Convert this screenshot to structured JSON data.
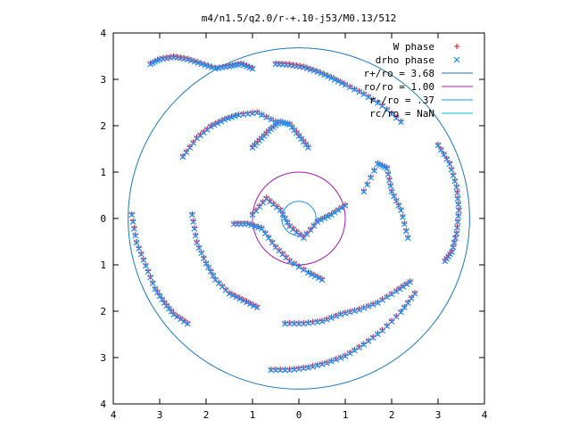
{
  "chart_data": {
    "type": "scatter",
    "title": "m4/n1.5/q2.0/r-+.10-j53/M0.13/512",
    "xlim": [
      -4,
      4
    ],
    "ylim": [
      -4,
      4
    ],
    "x_tick_labels": [
      "4",
      "3",
      "2",
      "1",
      "0",
      "1",
      "2",
      "3",
      "4"
    ],
    "y_tick_labels": [
      "4",
      "3",
      "2",
      "1",
      "0",
      "1",
      "2",
      "3",
      "4"
    ],
    "grid": false,
    "legend_position": "top-right",
    "legend": [
      {
        "label": "W phase",
        "kind": "marker-plus",
        "color": "#ff0000"
      },
      {
        "label": "drho phase",
        "kind": "marker-x",
        "color": "#0080ff"
      },
      {
        "label": "r+/ro = 3.68",
        "kind": "line",
        "color": "#1f77b4"
      },
      {
        "label": "ro/ro = 1.00",
        "kind": "line",
        "color": "#a020a0"
      },
      {
        "label": "r-/ro = .37",
        "kind": "line",
        "color": "#1e90ff"
      },
      {
        "label": "rc/ro = NaN",
        "kind": "line",
        "color": "#00bcd4"
      }
    ],
    "circles": [
      {
        "name": "r+/ro",
        "radius": 3.68,
        "color": "#1f77b4"
      },
      {
        "name": "ro/ro",
        "radius": 1.0,
        "color": "#a020a0"
      },
      {
        "name": "r-/ro",
        "radius": 0.37,
        "color": "#1e90ff"
      }
    ],
    "series": [
      {
        "name": "W phase",
        "marker": "plus",
        "color": "#ff0000",
        "arms": [
          {
            "x": [
              -3.2,
              -3.0,
              -2.7,
              -2.4,
              -2.1,
              -1.8,
              -1.5,
              -1.25,
              -1.0
            ],
            "y": [
              3.35,
              3.45,
              3.5,
              3.45,
              3.35,
              3.25,
              3.3,
              3.35,
              3.25
            ]
          },
          {
            "x": [
              -0.5,
              -0.2,
              0.1,
              0.4,
              0.7,
              1.0,
              1.4,
              1.8,
              2.2
            ],
            "y": [
              3.35,
              3.33,
              3.28,
              3.18,
              3.05,
              2.9,
              2.7,
              2.45,
              2.1
            ]
          },
          {
            "x": [
              -2.5,
              -2.2,
              -1.9,
              -1.6,
              -1.3,
              -0.9,
              -0.5
            ],
            "y": [
              1.35,
              1.75,
              2.0,
              2.15,
              2.25,
              2.3,
              2.1
            ]
          },
          {
            "x": [
              -3.6,
              -3.5,
              -3.3,
              -3.1,
              -2.9,
              -2.7,
              -2.4
            ],
            "y": [
              0.1,
              -0.5,
              -1.0,
              -1.5,
              -1.8,
              -2.05,
              -2.25
            ]
          },
          {
            "x": [
              -2.3,
              -2.2,
              -2.0,
              -1.8,
              -1.5,
              -1.2,
              -0.9
            ],
            "y": [
              0.1,
              -0.5,
              -0.95,
              -1.3,
              -1.6,
              -1.75,
              -1.9
            ]
          },
          {
            "x": [
              -0.6,
              -0.2,
              0.2,
              0.6,
              1.0,
              1.4,
              1.8,
              2.2,
              2.5
            ],
            "y": [
              -3.25,
              -3.25,
              -3.2,
              -3.1,
              -2.95,
              -2.7,
              -2.4,
              -2.0,
              -1.6
            ]
          },
          {
            "x": [
              -0.3,
              0.1,
              0.5,
              0.9,
              1.3,
              1.7,
              2.1,
              2.4
            ],
            "y": [
              -2.25,
              -2.25,
              -2.2,
              -2.05,
              -1.95,
              -1.8,
              -1.55,
              -1.35
            ]
          },
          {
            "x": [
              3.0,
              3.25,
              3.4,
              3.45,
              3.4,
              3.3,
              3.15
            ],
            "y": [
              1.6,
              1.2,
              0.7,
              0.2,
              -0.3,
              -0.7,
              -0.9
            ]
          },
          {
            "x": [
              1.4,
              1.7,
              1.9,
              2.0,
              2.2,
              2.35
            ],
            "y": [
              0.6,
              1.2,
              1.1,
              0.6,
              0.2,
              -0.4
            ]
          },
          {
            "x": [
              -1.0,
              -0.7,
              -0.4,
              -0.2,
              0.1,
              0.4,
              0.7,
              1.0
            ],
            "y": [
              0.1,
              0.45,
              0.2,
              -0.15,
              -0.4,
              -0.05,
              0.1,
              0.3
            ]
          },
          {
            "x": [
              -1.4,
              -1.1,
              -0.8,
              -0.5,
              -0.2,
              0.2,
              0.5
            ],
            "y": [
              -0.1,
              -0.1,
              -0.2,
              -0.6,
              -0.9,
              -1.15,
              -1.3
            ]
          },
          {
            "x": [
              -1.0,
              -0.8,
              -0.6,
              -0.4,
              -0.2,
              0.0,
              0.2
            ],
            "y": [
              1.55,
              1.75,
              1.95,
              2.1,
              2.05,
              1.8,
              1.55
            ]
          }
        ]
      },
      {
        "name": "drho phase",
        "marker": "x",
        "color": "#1e90ff",
        "arms": [
          {
            "x": [
              -3.2,
              -3.0,
              -2.7,
              -2.4,
              -2.1,
              -1.8,
              -1.5,
              -1.25,
              -1.0
            ],
            "y": [
              3.33,
              3.43,
              3.48,
              3.43,
              3.33,
              3.23,
              3.28,
              3.33,
              3.23
            ]
          },
          {
            "x": [
              -0.5,
              -0.2,
              0.1,
              0.4,
              0.7,
              1.0,
              1.4,
              1.8,
              2.2
            ],
            "y": [
              3.33,
              3.31,
              3.26,
              3.16,
              3.03,
              2.88,
              2.68,
              2.43,
              2.08
            ]
          },
          {
            "x": [
              -2.5,
              -2.2,
              -1.9,
              -1.6,
              -1.3,
              -0.9,
              -0.5
            ],
            "y": [
              1.33,
              1.73,
              1.98,
              2.13,
              2.23,
              2.28,
              2.08
            ]
          },
          {
            "x": [
              -3.6,
              -3.5,
              -3.3,
              -3.1,
              -2.9,
              -2.7,
              -2.4
            ],
            "y": [
              0.08,
              -0.52,
              -1.02,
              -1.52,
              -1.82,
              -2.07,
              -2.27
            ]
          },
          {
            "x": [
              -2.3,
              -2.2,
              -2.0,
              -1.8,
              -1.5,
              -1.2,
              -0.9
            ],
            "y": [
              0.08,
              -0.52,
              -0.97,
              -1.32,
              -1.62,
              -1.77,
              -1.92
            ]
          },
          {
            "x": [
              -0.6,
              -0.2,
              0.2,
              0.6,
              1.0,
              1.4,
              1.8,
              2.2,
              2.5
            ],
            "y": [
              -3.27,
              -3.27,
              -3.22,
              -3.12,
              -2.97,
              -2.72,
              -2.42,
              -2.02,
              -1.62
            ]
          },
          {
            "x": [
              -0.3,
              0.1,
              0.5,
              0.9,
              1.3,
              1.7,
              2.1,
              2.4
            ],
            "y": [
              -2.27,
              -2.27,
              -2.22,
              -2.07,
              -1.97,
              -1.82,
              -1.57,
              -1.37
            ]
          },
          {
            "x": [
              3.0,
              3.25,
              3.4,
              3.45,
              3.4,
              3.3,
              3.15
            ],
            "y": [
              1.58,
              1.18,
              0.68,
              0.18,
              -0.32,
              -0.72,
              -0.92
            ]
          },
          {
            "x": [
              1.4,
              1.7,
              1.9,
              2.0,
              2.2,
              2.35
            ],
            "y": [
              0.58,
              1.18,
              1.08,
              0.58,
              0.18,
              -0.42
            ]
          },
          {
            "x": [
              -1.0,
              -0.7,
              -0.4,
              -0.2,
              0.1,
              0.4,
              0.7,
              1.0
            ],
            "y": [
              0.08,
              0.43,
              0.18,
              -0.17,
              -0.42,
              -0.07,
              0.08,
              0.28
            ]
          },
          {
            "x": [
              -1.4,
              -1.1,
              -0.8,
              -0.5,
              -0.2,
              0.2,
              0.5
            ],
            "y": [
              -0.12,
              -0.12,
              -0.22,
              -0.62,
              -0.92,
              -1.17,
              -1.32
            ]
          },
          {
            "x": [
              -1.0,
              -0.8,
              -0.6,
              -0.4,
              -0.2,
              0.0,
              0.2
            ],
            "y": [
              1.53,
              1.73,
              1.93,
              2.08,
              2.03,
              1.78,
              1.53
            ]
          }
        ]
      }
    ]
  }
}
